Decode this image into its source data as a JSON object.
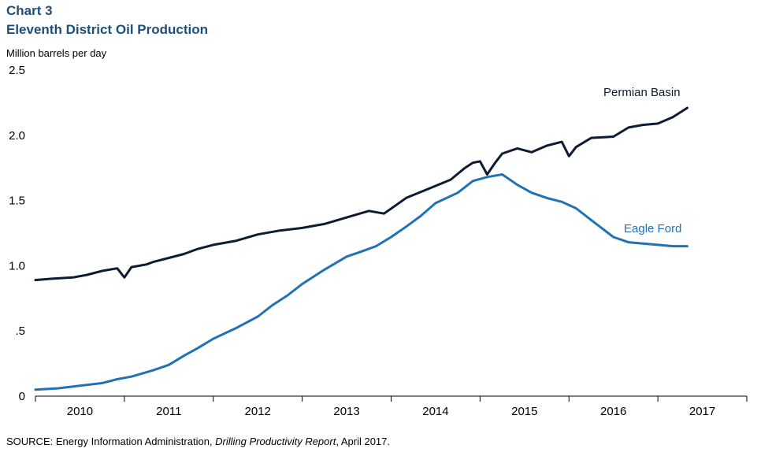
{
  "chart_label": "Chart 3",
  "title": "Eleventh District Oil Production",
  "unit_label": "Million barrels per day",
  "source": {
    "prefix": "SOURCE: Energy Information Administration, ",
    "italic": "Drilling Productivity Report",
    "suffix": ", April 2017."
  },
  "chart_data": {
    "type": "line",
    "title": "Eleventh District Oil Production",
    "ylabel": "Million barrels per day",
    "ylim": [
      0,
      2.5
    ],
    "yticks": [
      0,
      0.5,
      1.0,
      1.5,
      2.0,
      2.5
    ],
    "ytick_labels": [
      "0",
      ".5",
      "1.0",
      "1.5",
      "2.0",
      "2.5"
    ],
    "xlim": [
      2009.5,
      2017.5
    ],
    "xtick_labels": [
      "2010",
      "2011",
      "2012",
      "2013",
      "2014",
      "2015",
      "2016",
      "2017"
    ],
    "grid": false,
    "colors": {
      "Permian Basin": "#0d1c33",
      "Eagle Ford": "#2171b5"
    },
    "series": [
      {
        "name": "Permian Basin",
        "x": [
          2009.5,
          2009.67,
          2009.92,
          2010.08,
          2010.25,
          2010.42,
          2010.5,
          2010.58,
          2010.67,
          2010.75,
          2010.83,
          2011.0,
          2011.17,
          2011.33,
          2011.5,
          2011.75,
          2012.0,
          2012.25,
          2012.5,
          2012.75,
          2013.0,
          2013.25,
          2013.42,
          2013.67,
          2013.92,
          2014.17,
          2014.33,
          2014.42,
          2014.5,
          2014.58,
          2014.67,
          2014.75,
          2014.92,
          2015.08,
          2015.25,
          2015.42,
          2015.5,
          2015.58,
          2015.75,
          2016.0,
          2016.17,
          2016.33,
          2016.5,
          2016.67,
          2016.83
        ],
        "y": [
          0.89,
          0.9,
          0.91,
          0.93,
          0.96,
          0.98,
          0.91,
          0.99,
          1.0,
          1.01,
          1.03,
          1.06,
          1.09,
          1.13,
          1.16,
          1.19,
          1.24,
          1.27,
          1.29,
          1.32,
          1.37,
          1.42,
          1.4,
          1.52,
          1.59,
          1.66,
          1.75,
          1.79,
          1.8,
          1.7,
          1.79,
          1.86,
          1.9,
          1.87,
          1.92,
          1.95,
          1.84,
          1.91,
          1.98,
          1.99,
          2.06,
          2.08,
          2.09,
          2.14,
          2.21
        ]
      },
      {
        "name": "Eagle Ford",
        "x": [
          2009.5,
          2009.75,
          2010.0,
          2010.25,
          2010.42,
          2010.58,
          2010.83,
          2011.0,
          2011.17,
          2011.33,
          2011.5,
          2011.75,
          2012.0,
          2012.17,
          2012.33,
          2012.5,
          2012.75,
          2013.0,
          2013.17,
          2013.33,
          2013.5,
          2013.67,
          2013.83,
          2014.0,
          2014.25,
          2014.42,
          2014.58,
          2014.75,
          2014.92,
          2015.08,
          2015.25,
          2015.42,
          2015.58,
          2015.75,
          2016.0,
          2016.17,
          2016.33,
          2016.5,
          2016.67,
          2016.83
        ],
        "y": [
          0.05,
          0.06,
          0.08,
          0.1,
          0.13,
          0.15,
          0.2,
          0.24,
          0.31,
          0.37,
          0.44,
          0.52,
          0.61,
          0.7,
          0.77,
          0.86,
          0.97,
          1.07,
          1.11,
          1.15,
          1.22,
          1.3,
          1.38,
          1.48,
          1.56,
          1.65,
          1.68,
          1.7,
          1.62,
          1.56,
          1.52,
          1.49,
          1.44,
          1.35,
          1.22,
          1.18,
          1.17,
          1.16,
          1.15,
          1.15
        ]
      }
    ]
  }
}
